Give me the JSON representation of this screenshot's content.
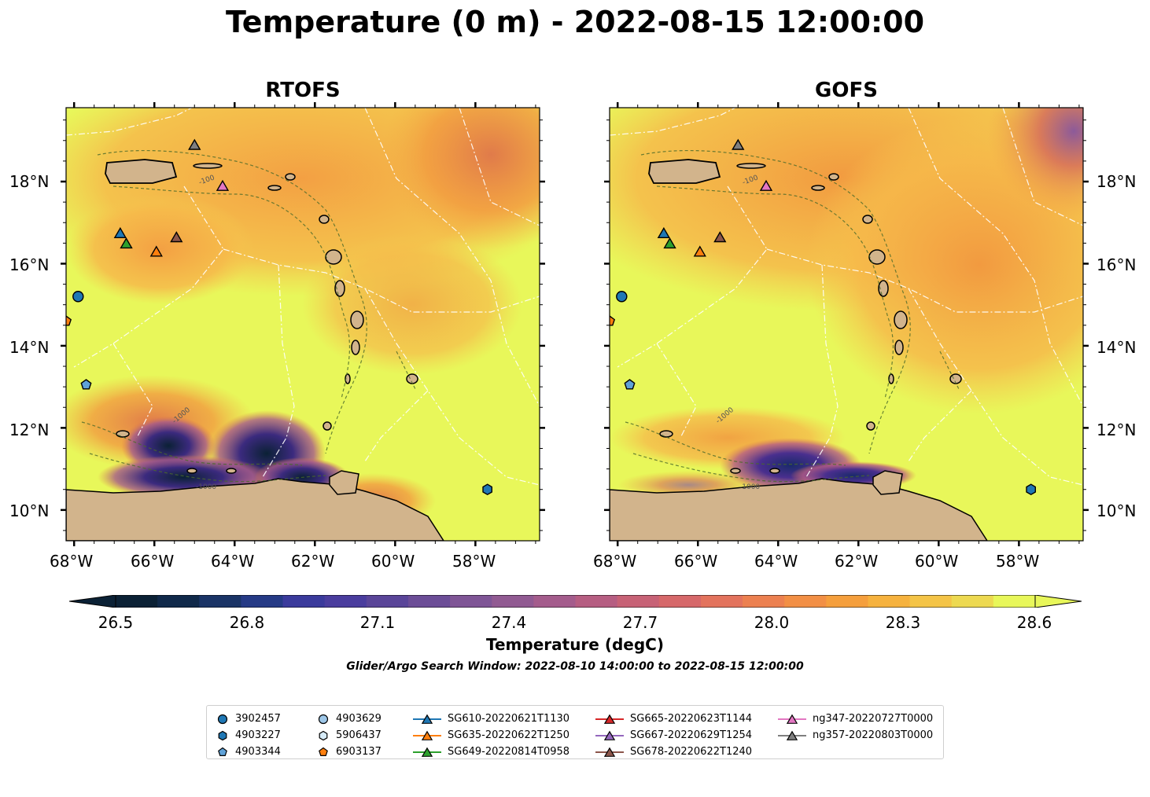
{
  "title": "Temperature (0 m) - 2022-08-15 12:00:00",
  "panels": [
    {
      "title": "RTOFS"
    },
    {
      "title": "GOFS"
    }
  ],
  "lat_labels": [
    "18°N",
    "16°N",
    "14°N",
    "12°N",
    "10°N"
  ],
  "lon_labels": [
    "68°W",
    "66°W",
    "64°W",
    "62°W",
    "60°W",
    "58°W"
  ],
  "contour_labels": [
    "-1000",
    "-100"
  ],
  "colorbar": {
    "label": "Temperature (degC)",
    "ticks": [
      "26.5",
      "26.8",
      "27.1",
      "27.4",
      "27.7",
      "28.0",
      "28.3",
      "28.6"
    ],
    "note": "Glider/Argo Search Window: 2022-08-10 14:00:00 to 2022-08-15 12:00:00"
  },
  "colors": {
    "land": "#d2b48c",
    "warm_background": "#e8f75a",
    "warm_orange": "#f4a23c",
    "cold_purple": "#4a2f8e",
    "cold_dark": "#0b2135"
  },
  "legend": {
    "columns": [
      [
        {
          "label": "3902457",
          "marker": "circle",
          "color": "#1f77b4"
        },
        {
          "label": "4903227",
          "marker": "hexagon",
          "color": "#1f77b4"
        },
        {
          "label": "4903344",
          "marker": "pentagon",
          "color": "#5fa2d8"
        }
      ],
      [
        {
          "label": "4903629",
          "marker": "circle",
          "color": "#9ec7e8"
        },
        {
          "label": "5906437",
          "marker": "hexagon",
          "color": "#d6ebf8"
        },
        {
          "label": "6903137",
          "marker": "pentagon",
          "color": "#ff7f0e"
        }
      ],
      [
        {
          "label": "SG610-20220621T1130",
          "marker": "triangle",
          "color": "#1f77b4"
        },
        {
          "label": "SG635-20220622T1250",
          "marker": "triangle",
          "color": "#ff7f0e"
        },
        {
          "label": "SG649-20220814T0958",
          "marker": "triangle",
          "color": "#2ca02c"
        }
      ],
      [
        {
          "label": "SG665-20220623T1144",
          "marker": "triangle",
          "color": "#d62728"
        },
        {
          "label": "SG667-20220629T1254",
          "marker": "triangle",
          "color": "#9467bd"
        },
        {
          "label": "SG678-20220622T1240",
          "marker": "triangle",
          "color": "#8c564b"
        }
      ],
      [
        {
          "label": "ng347-20220727T0000",
          "marker": "triangle",
          "color": "#e377c2"
        },
        {
          "label": "ng357-20220803T0000",
          "marker": "triangle",
          "color": "#7f7f7f"
        }
      ]
    ]
  },
  "observations": [
    {
      "id": "3902457",
      "marker": "circle",
      "color": "#1f77b4",
      "lon": -67.9,
      "lat": 15.2
    },
    {
      "id": "6903137",
      "marker": "pentagon",
      "color": "#ff7f0e",
      "lon": -68.2,
      "lat": 14.6
    },
    {
      "id": "4903344",
      "marker": "pentagon",
      "color": "#5fa2d8",
      "lon": -67.7,
      "lat": 13.05
    },
    {
      "id": "4903227",
      "marker": "hexagon",
      "color": "#1f77b4",
      "lon": -57.7,
      "lat": 10.5
    },
    {
      "id": "SG610-20220621T1130",
      "marker": "triangle",
      "color": "#1f77b4",
      "lon": -66.85,
      "lat": 16.75
    },
    {
      "id": "SG649-20220814T0958",
      "marker": "triangle",
      "color": "#2ca02c",
      "lon": -66.7,
      "lat": 16.5
    },
    {
      "id": "SG635-20220622T1250",
      "marker": "triangle",
      "color": "#ff7f0e",
      "lon": -65.95,
      "lat": 16.3
    },
    {
      "id": "SG678-20220622T1240",
      "marker": "triangle",
      "color": "#8c564b",
      "lon": -65.45,
      "lat": 16.65
    },
    {
      "id": "ng357-20220803T0000",
      "marker": "triangle",
      "color": "#7f7f7f",
      "lon": -65.0,
      "lat": 18.9
    },
    {
      "id": "ng347-20220727T0000",
      "marker": "triangle",
      "color": "#e377c2",
      "lon": -64.3,
      "lat": 17.9
    }
  ]
}
